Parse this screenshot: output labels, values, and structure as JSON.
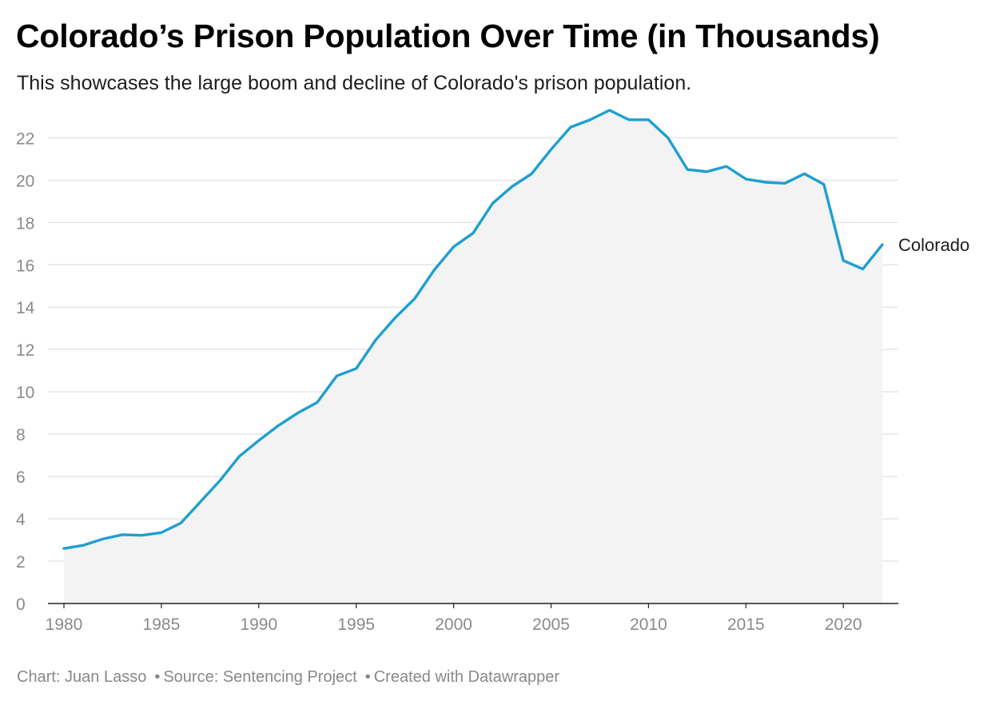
{
  "header": {
    "title": "Colorado’s Prison Population Over Time (in Thousands)",
    "subtitle": "This showcases the large boom and decline of Colorado's prison population."
  },
  "footer": {
    "credit": "Chart: Juan Lasso",
    "source": "Source: Sentencing Project",
    "tool": "Created with Datawrapper",
    "separator": "•"
  },
  "colors": {
    "line": "#1f9fcf",
    "area": "#f3f3f3",
    "grid": "#e2e2e2",
    "axis": "#222222"
  },
  "chart_data": {
    "type": "area",
    "title": "Colorado’s Prison Population Over Time (in Thousands)",
    "subtitle": "This showcases the large boom and decline of Colorado's prison population.",
    "xlabel": "",
    "ylabel": "",
    "xlim": [
      1980,
      2022
    ],
    "ylim": [
      0,
      23.6
    ],
    "x_ticks": [
      1980,
      1985,
      1990,
      1995,
      2000,
      2005,
      2010,
      2015,
      2020
    ],
    "y_ticks": [
      0,
      2,
      4,
      6,
      8,
      10,
      12,
      14,
      16,
      18,
      20,
      22
    ],
    "grid": "horizontal",
    "legend": "inline-end-label",
    "series": [
      {
        "name": "Colorado",
        "x": [
          1980,
          1981,
          1982,
          1983,
          1984,
          1985,
          1986,
          1987,
          1988,
          1989,
          1990,
          1991,
          1992,
          1993,
          1994,
          1995,
          1996,
          1997,
          1998,
          1999,
          2000,
          2001,
          2002,
          2003,
          2004,
          2005,
          2006,
          2007,
          2008,
          2009,
          2010,
          2011,
          2012,
          2013,
          2014,
          2015,
          2016,
          2017,
          2018,
          2019,
          2020,
          2021,
          2022
        ],
        "values": [
          2.6,
          2.75,
          3.05,
          3.25,
          3.22,
          3.35,
          3.8,
          4.8,
          5.8,
          6.95,
          7.7,
          8.4,
          9.0,
          9.5,
          10.75,
          11.1,
          12.45,
          13.5,
          14.4,
          15.75,
          16.85,
          17.5,
          18.9,
          19.7,
          20.3,
          21.45,
          22.5,
          22.85,
          23.3,
          22.85,
          22.85,
          22.0,
          20.5,
          20.4,
          20.65,
          20.05,
          19.9,
          19.85,
          20.3,
          19.8,
          16.2,
          15.8,
          16.95
        ]
      }
    ]
  }
}
